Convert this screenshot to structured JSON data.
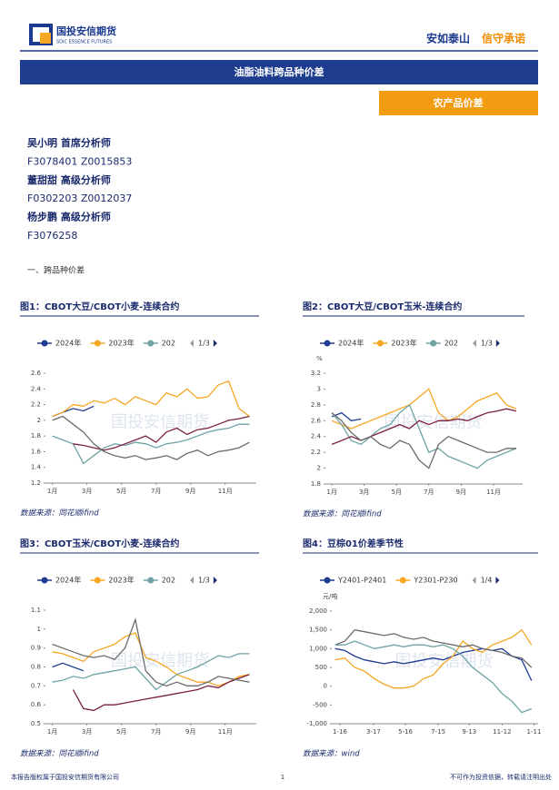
{
  "header": {
    "logo_cn": "国投安信期货",
    "logo_en": "SDIC ESSENCE FUTURES",
    "motto_1": "安如泰山",
    "motto_2": "信守承诺"
  },
  "banner": "油脂油料跨品种价差",
  "tag": "农产品价差",
  "analysts": [
    "吴小明 首席分析师",
    "F3078401 Z0015853",
    "董甜甜 高级分析师",
    "F0302203 Z0012037",
    "杨步鹏 高级分析师",
    "F3076258"
  ],
  "section": "一、跨品种价差",
  "watermark": "国投安信期货",
  "chart_data": [
    {
      "type": "line",
      "title": "图1：CBOT大豆/CBOT小麦-连续合约",
      "legend_pager": "1/3",
      "source": "数据来源：同花顺ifind",
      "x": [
        1,
        1.6,
        2.2,
        2.8,
        3.4,
        4,
        4.6,
        5.2,
        5.8,
        6.4,
        7,
        7.6,
        8.2,
        8.8,
        9.4,
        10,
        10.6,
        11.2,
        11.8,
        12.4
      ],
      "xlim": [
        0.6,
        12.8
      ],
      "xticks": [
        {
          "value": 1,
          "label": "1月"
        },
        {
          "value": 3,
          "label": "3月"
        },
        {
          "value": 5,
          "label": "5月"
        },
        {
          "value": 7,
          "label": "7月"
        },
        {
          "value": 9,
          "label": "9月"
        },
        {
          "value": 11,
          "label": "11月"
        }
      ],
      "ylim": [
        1.2,
        2.6
      ],
      "yticks": [
        1.2,
        1.4,
        1.6,
        1.8,
        2,
        2.2,
        2.4,
        2.6
      ],
      "series": [
        {
          "name": "2024年",
          "color": "#1f3a93",
          "values": [
            2.05,
            2.1,
            2.15,
            2.12,
            2.18,
            null,
            null,
            null,
            null,
            null,
            null,
            null,
            null,
            null,
            null,
            null,
            null,
            null,
            null,
            null
          ]
        },
        {
          "name": "2023年",
          "color": "#f5a623",
          "values": [
            2.05,
            2.1,
            2.2,
            2.18,
            2.25,
            2.22,
            2.28,
            2.2,
            2.3,
            2.25,
            2.2,
            2.35,
            2.3,
            2.4,
            2.28,
            2.3,
            2.45,
            2.5,
            2.15,
            2.05
          ]
        },
        {
          "name": "202",
          "color": "#6fa3a6",
          "values": [
            1.8,
            1.75,
            1.7,
            1.45,
            1.55,
            1.65,
            1.7,
            1.68,
            1.72,
            1.7,
            1.65,
            1.7,
            1.72,
            1.75,
            1.8,
            1.85,
            1.88,
            1.9,
            1.95,
            1.95
          ]
        },
        {
          "color": "#7b1f3f",
          "values": [
            null,
            null,
            1.7,
            1.68,
            1.65,
            1.62,
            1.65,
            1.7,
            1.75,
            1.8,
            1.72,
            1.85,
            1.9,
            1.82,
            1.88,
            1.9,
            1.95,
            2.0,
            2.02,
            2.05
          ]
        },
        {
          "color": "#6b6b6b",
          "values": [
            2.0,
            2.05,
            1.95,
            1.85,
            1.7,
            1.6,
            1.55,
            1.52,
            1.55,
            1.5,
            1.52,
            1.55,
            1.5,
            1.58,
            1.62,
            1.55,
            1.6,
            1.62,
            1.65,
            1.72
          ]
        }
      ]
    },
    {
      "type": "line",
      "title": "图2：CBOT大豆/CBOT玉米-连续合约",
      "legend_pager": "1/3",
      "unit": "%",
      "source": "数据来源：同花顺ifind",
      "x": [
        1,
        1.6,
        2.2,
        2.8,
        3.4,
        4,
        4.6,
        5.2,
        5.8,
        6.4,
        7,
        7.6,
        8.2,
        8.8,
        9.4,
        10,
        10.6,
        11.2,
        11.8,
        12.4
      ],
      "xlim": [
        0.6,
        12.8
      ],
      "xticks": [
        {
          "value": 1,
          "label": "1月"
        },
        {
          "value": 3,
          "label": "3月"
        },
        {
          "value": 5,
          "label": "5月"
        },
        {
          "value": 7,
          "label": "7月"
        },
        {
          "value": 9,
          "label": "9月"
        },
        {
          "value": 11,
          "label": "11月"
        }
      ],
      "ylim": [
        1.8,
        3.2
      ],
      "yticks": [
        1.8,
        2,
        2.2,
        2.4,
        2.6,
        2.8,
        3,
        3.2
      ],
      "series": [
        {
          "name": "2024年",
          "color": "#1f3a93",
          "values": [
            2.65,
            2.7,
            2.6,
            2.62,
            null,
            null,
            null,
            null,
            null,
            null,
            null,
            null,
            null,
            null,
            null,
            null,
            null,
            null,
            null,
            null
          ]
        },
        {
          "name": "2023年",
          "color": "#f5a623",
          "values": [
            2.6,
            2.55,
            2.5,
            2.55,
            2.6,
            2.65,
            2.7,
            2.75,
            2.8,
            2.9,
            3.0,
            2.7,
            2.6,
            2.65,
            2.75,
            2.85,
            2.9,
            2.95,
            2.8,
            2.75
          ]
        },
        {
          "name": "202",
          "color": "#6fa3a6",
          "values": [
            2.7,
            2.55,
            2.35,
            2.3,
            2.4,
            2.5,
            2.55,
            2.7,
            2.8,
            2.5,
            2.2,
            2.25,
            2.15,
            2.1,
            2.05,
            2.0,
            2.1,
            2.15,
            2.2,
            2.25
          ]
        },
        {
          "color": "#7b1f3f",
          "values": [
            2.3,
            2.35,
            2.4,
            2.35,
            2.4,
            2.45,
            2.5,
            2.55,
            2.5,
            2.6,
            2.55,
            2.6,
            2.6,
            2.62,
            2.6,
            2.65,
            2.7,
            2.72,
            2.75,
            2.72
          ]
        },
        {
          "color": "#6b6b6b",
          "values": [
            2.7,
            2.6,
            2.45,
            2.35,
            2.4,
            2.3,
            2.25,
            2.35,
            2.3,
            2.1,
            2.0,
            2.3,
            2.4,
            2.35,
            2.3,
            2.25,
            2.2,
            2.2,
            2.25,
            2.25
          ]
        }
      ]
    },
    {
      "type": "line",
      "title": "图3：CBOT玉米/CBOT小麦-连续合约",
      "legend_pager": "1/3",
      "source": "数据来源：同花顺ifind",
      "x": [
        1,
        1.6,
        2.2,
        2.8,
        3.4,
        4,
        4.6,
        5.2,
        5.8,
        6.4,
        7,
        7.6,
        8.2,
        8.8,
        9.4,
        10,
        10.6,
        11.2,
        11.8,
        12.4
      ],
      "xlim": [
        0.6,
        12.8
      ],
      "xticks": [
        {
          "value": 1,
          "label": "1月"
        },
        {
          "value": 3,
          "label": "3月"
        },
        {
          "value": 5,
          "label": "5月"
        },
        {
          "value": 7,
          "label": "7月"
        },
        {
          "value": 9,
          "label": "9月"
        },
        {
          "value": 11,
          "label": "11月"
        }
      ],
      "ylim": [
        0.5,
        1.1
      ],
      "yticks": [
        0.5,
        0.6,
        0.7,
        0.8,
        0.9,
        1,
        1.1
      ],
      "series": [
        {
          "name": "2024年",
          "color": "#1f3a93",
          "values": [
            0.8,
            0.82,
            0.8,
            0.78,
            null,
            null,
            null,
            null,
            null,
            null,
            null,
            null,
            null,
            null,
            null,
            null,
            null,
            null,
            null,
            null
          ]
        },
        {
          "name": "2023年",
          "color": "#f5a623",
          "values": [
            0.88,
            0.87,
            0.85,
            0.83,
            0.88,
            0.9,
            0.92,
            0.96,
            0.98,
            0.85,
            0.83,
            0.8,
            0.76,
            0.74,
            0.72,
            0.72,
            0.7,
            0.72,
            0.75,
            0.76
          ]
        },
        {
          "name": "202",
          "color": "#6fa3a6",
          "values": [
            0.72,
            0.73,
            0.75,
            0.74,
            0.76,
            0.77,
            0.78,
            0.79,
            0.8,
            0.74,
            0.68,
            0.72,
            0.76,
            0.78,
            0.8,
            0.83,
            0.86,
            0.85,
            0.87,
            0.87
          ]
        },
        {
          "color": "#7b1f3f",
          "values": [
            null,
            null,
            0.68,
            0.58,
            0.57,
            0.6,
            0.6,
            0.61,
            0.62,
            0.63,
            0.64,
            0.65,
            0.66,
            0.67,
            0.68,
            0.7,
            0.69,
            0.72,
            0.74,
            0.76
          ]
        },
        {
          "color": "#6b6b6b",
          "values": [
            0.92,
            0.9,
            0.88,
            0.86,
            0.85,
            0.86,
            0.84,
            0.9,
            1.05,
            0.78,
            0.72,
            0.7,
            0.72,
            0.7,
            0.7,
            0.72,
            0.75,
            0.74,
            0.73,
            0.72
          ]
        }
      ]
    },
    {
      "type": "line",
      "title": "图4：豆棕01价差季节性",
      "legend_pager": "1/4",
      "unit": "元/吨",
      "source": "数据来源：wind",
      "x": [
        1.2,
        1.8,
        2.4,
        3,
        3.6,
        4.2,
        4.8,
        5.4,
        6,
        6.6,
        7.2,
        7.8,
        8.4,
        9,
        9.6,
        10.2,
        10.8,
        11.4,
        12,
        12.6,
        13.2
      ],
      "xlim": [
        1,
        13.6
      ],
      "xticks": [
        {
          "value": 1.5,
          "label": "1-16"
        },
        {
          "value": 3.55,
          "label": "3-17"
        },
        {
          "value": 5.5,
          "label": "5-16"
        },
        {
          "value": 7.5,
          "label": "7-15"
        },
        {
          "value": 9.4,
          "label": "9-13"
        },
        {
          "value": 11.4,
          "label": "11-12"
        },
        {
          "value": 13.35,
          "label": "1-11"
        }
      ],
      "ylim": [
        -1000,
        2000
      ],
      "yticks": [
        {
          "value": -1000,
          "label": "-1,000"
        },
        -500,
        0,
        500,
        {
          "value": 1000,
          "label": "1,000"
        },
        {
          "value": 1500,
          "label": "1,500"
        },
        {
          "value": 2000,
          "label": "2,000"
        }
      ],
      "series": [
        {
          "name": "Y2401-P2401",
          "color": "#1f3a93",
          "values": [
            1000,
            950,
            800,
            700,
            650,
            600,
            650,
            600,
            650,
            700,
            750,
            700,
            800,
            900,
            950,
            1000,
            950,
            1000,
            800,
            700,
            150
          ]
        },
        {
          "name": "Y2301-P230",
          "color": "#f5a623",
          "values": [
            700,
            750,
            500,
            400,
            200,
            50,
            -50,
            -50,
            0,
            200,
            300,
            600,
            800,
            1200,
            1000,
            900,
            1100,
            1200,
            1300,
            1500,
            1100
          ]
        },
        {
          "color": "#6b6b6b",
          "values": [
            1100,
            1200,
            1500,
            1450,
            1400,
            1350,
            1400,
            1300,
            1250,
            1300,
            1200,
            1150,
            1100,
            1050,
            1100,
            1000,
            950,
            900,
            800,
            750,
            500
          ]
        },
        {
          "color": "#6fa3a6",
          "values": [
            1100,
            1100,
            1200,
            1100,
            1000,
            1050,
            1100,
            1050,
            1100,
            1100,
            1050,
            1100,
            1000,
            800,
            500,
            300,
            100,
            -200,
            -400,
            -700,
            -600
          ]
        }
      ]
    }
  ],
  "footer": {
    "left": "本报告版权属于国投安信期货有限公司",
    "page": "1",
    "right": "不可作为投资依据，转载请注明出处"
  }
}
